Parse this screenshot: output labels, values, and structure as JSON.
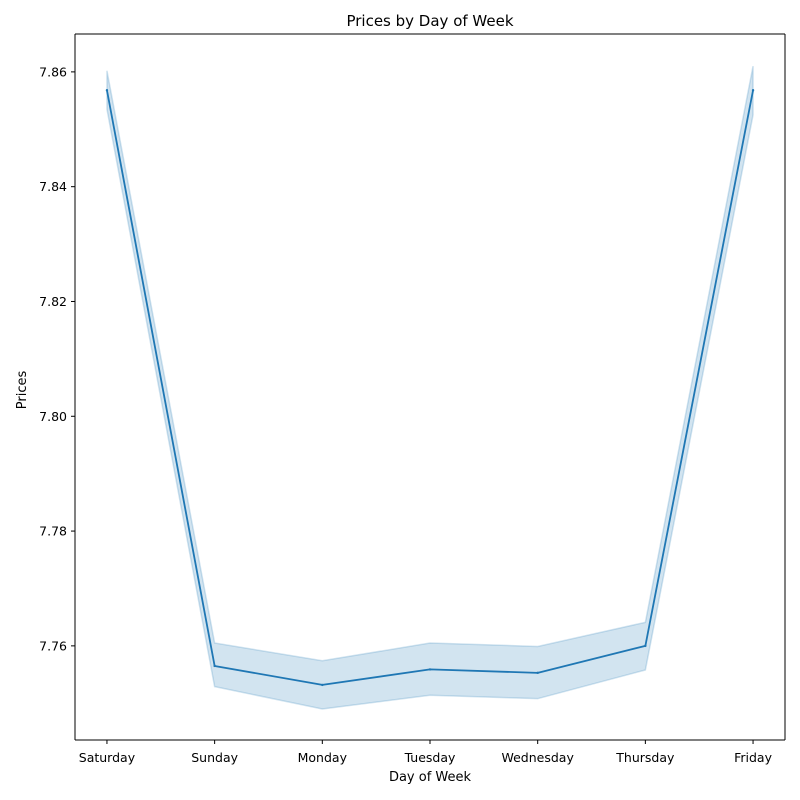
{
  "chart_data": {
    "type": "line",
    "title": "Prices by Day of Week",
    "xlabel": "Day of Week",
    "ylabel": "Prices",
    "categories": [
      "Saturday",
      "Sunday",
      "Monday",
      "Tuesday",
      "Wednesday",
      "Thursday",
      "Friday"
    ],
    "series": [
      {
        "values": [
          7.8568,
          7.7565,
          7.7532,
          7.7559,
          7.7553,
          7.76,
          7.8568
        ],
        "ci_lower": [
          7.8535,
          7.7529,
          7.749,
          7.7514,
          7.7508,
          7.7558,
          7.8525
        ],
        "ci_upper": [
          7.8602,
          7.7605,
          7.7574,
          7.7605,
          7.7599,
          7.7641,
          7.861
        ],
        "color": "#1f77b4",
        "band_color": "#1f77b4"
      }
    ],
    "yticks": [
      "7.76",
      "7.78",
      "7.80",
      "7.82",
      "7.84",
      "7.86"
    ],
    "ylim": [
      7.7436,
      7.8666
    ],
    "grid": false,
    "legend": "none"
  }
}
